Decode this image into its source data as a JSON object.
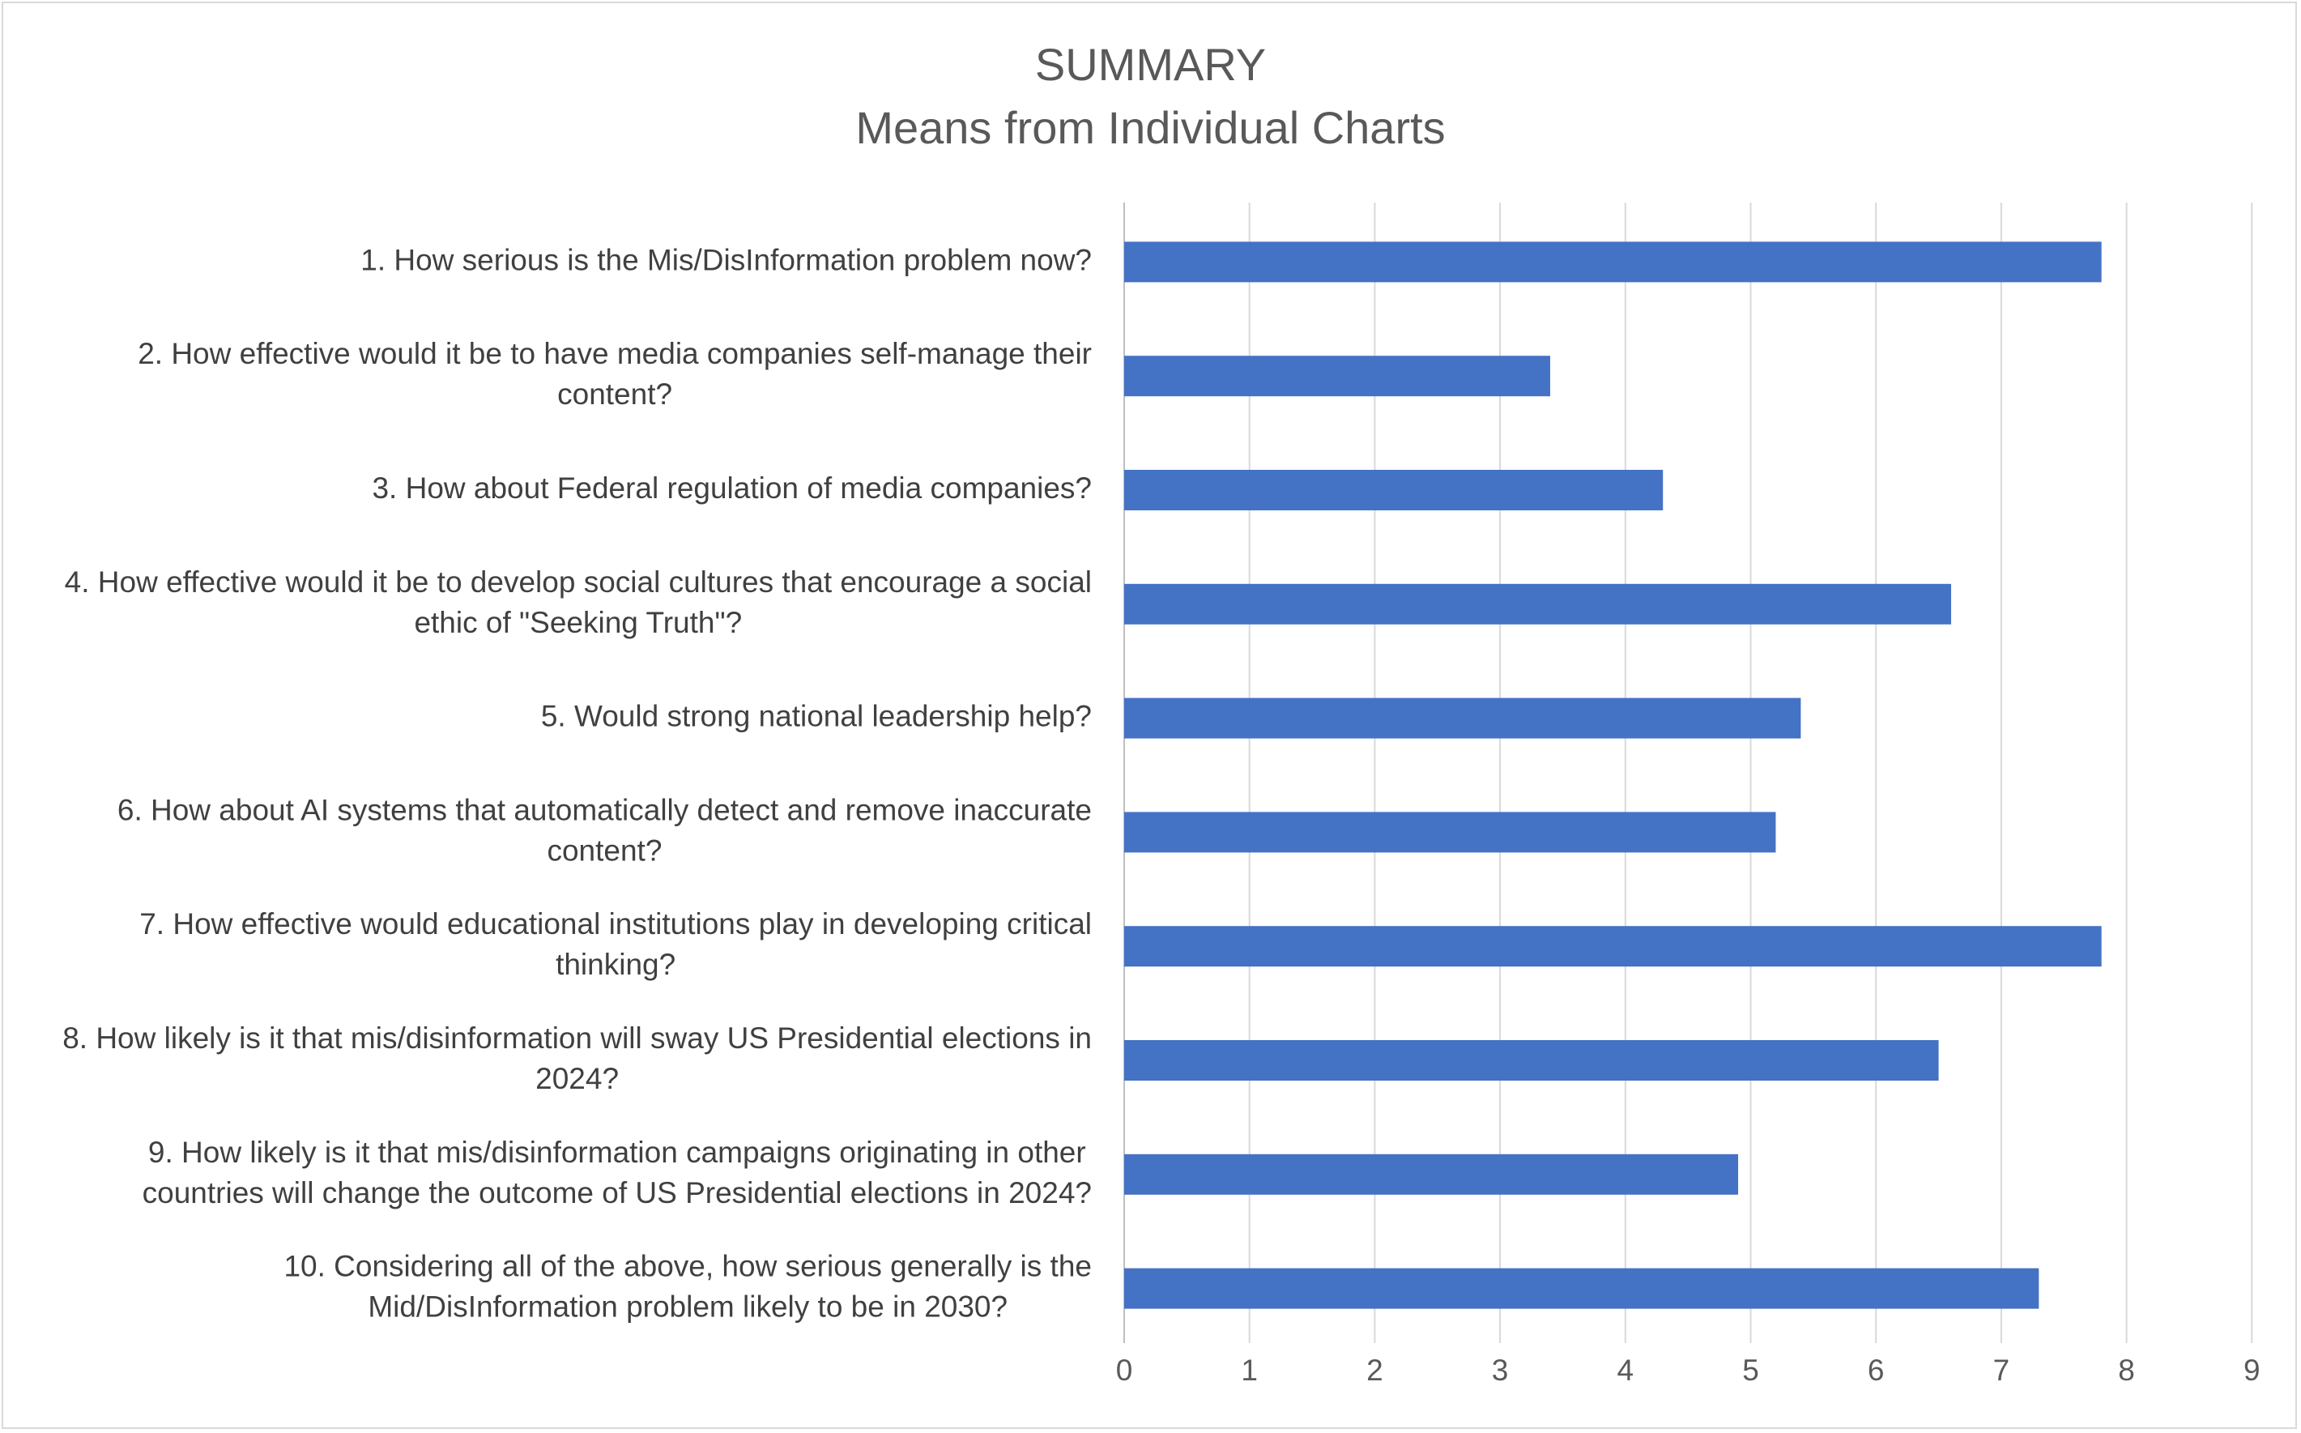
{
  "chart_data": {
    "type": "bar",
    "orientation": "horizontal",
    "title": "SUMMARY",
    "subtitle": "Means from Individual Charts",
    "categories": [
      "1. How serious is the Mis/DisInformation problem now?",
      "2. How effective would it be to have media companies self-manage their content?",
      "3. How about Federal regulation of media companies?",
      "4. How effective would it be to develop social cultures that encourage a social ethic of \"Seeking Truth\"?",
      "5. Would strong national leadership help?",
      "6. How about AI systems that automatically detect and remove inaccurate content?",
      "7. How effective would educational institutions play in developing critical thinking?",
      "8. How likely is it that mis/disinformation will sway US Presidential elections in 2024?",
      "9. How likely is it that mis/disinformation campaigns originating in other countries will change the outcome of US Presidential elections in 2024?",
      "10. Considering all of the above, how serious generally is the Mid/DisInformation problem likely to be in 2030?"
    ],
    "category_lines": [
      [
        "1. How serious is the Mis/DisInformation problem now?"
      ],
      [
        "2. How effective would it be to have media companies self-manage their",
        "content?"
      ],
      [
        "3. How about Federal regulation of media companies?"
      ],
      [
        "4. How effective would it be to develop social cultures that encourage a social",
        "ethic of \"Seeking Truth\"?"
      ],
      [
        "5. Would strong national leadership help?"
      ],
      [
        "6. How about AI systems that automatically detect and remove inaccurate",
        "content?"
      ],
      [
        "7. How effective would educational institutions play in developing critical",
        "thinking?"
      ],
      [
        "8. How likely is it that mis/disinformation will sway US Presidential elections in",
        "2024?"
      ],
      [
        "9. How likely is it that mis/disinformation campaigns originating in other",
        "countries will change the outcome of US Presidential elections in 2024?"
      ],
      [
        "10. Considering all of the above, how serious generally is the",
        "Mid/DisInformation problem likely to be in 2030?"
      ]
    ],
    "values": [
      7.8,
      3.4,
      4.3,
      6.6,
      5.4,
      5.2,
      7.8,
      6.5,
      4.9,
      7.3
    ],
    "xlim": [
      0,
      9
    ],
    "xticks": [
      "0",
      "1",
      "2",
      "3",
      "4",
      "5",
      "6",
      "7",
      "8",
      "9"
    ],
    "xlabel": "",
    "ylabel": "",
    "grid": "vertical",
    "legend": "none",
    "bar_color": "#4472C4",
    "grid_color": "#d9d9d9"
  }
}
